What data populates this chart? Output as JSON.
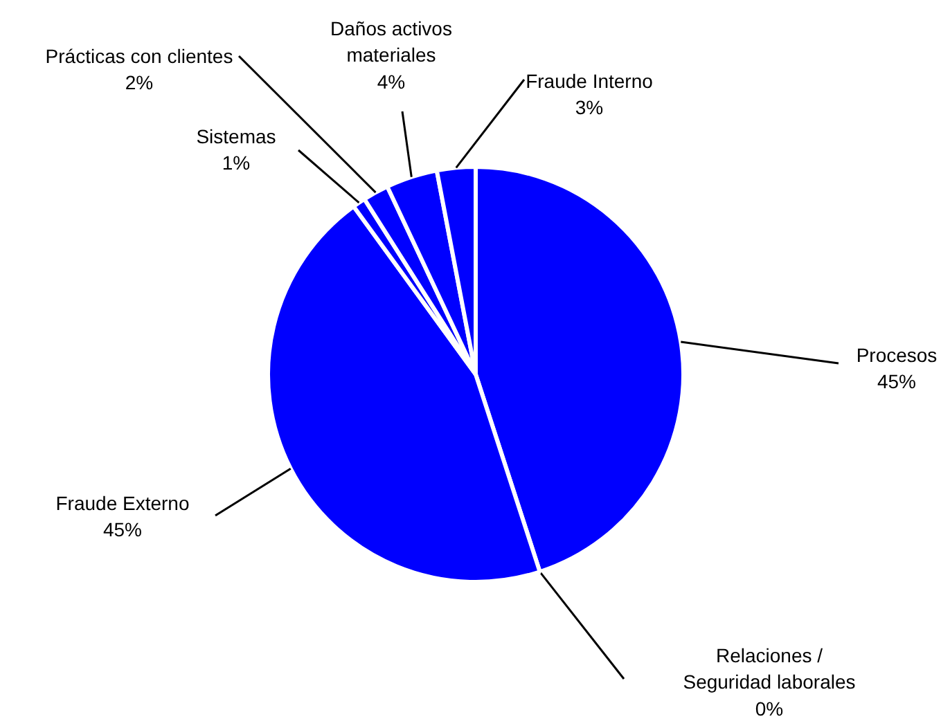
{
  "chart_data": {
    "type": "pie",
    "categories": [
      "Procesos",
      "Relaciones /\nSeguridad laborales",
      "Fraude Externo",
      "Sistemas",
      "Prácticas con clientes",
      "Daños activos\nmateriales",
      "Fraude Interno"
    ],
    "values": [
      45,
      0,
      45,
      1,
      2,
      4,
      3
    ],
    "value_labels": [
      "45%",
      "0%",
      "45%",
      "1%",
      "2%",
      "4%",
      "3%"
    ],
    "colors": [
      "#0000ff",
      "#0000ff",
      "#0000ff",
      "#0000ff",
      "#0000ff",
      "#0000ff",
      "#0000ff"
    ]
  }
}
